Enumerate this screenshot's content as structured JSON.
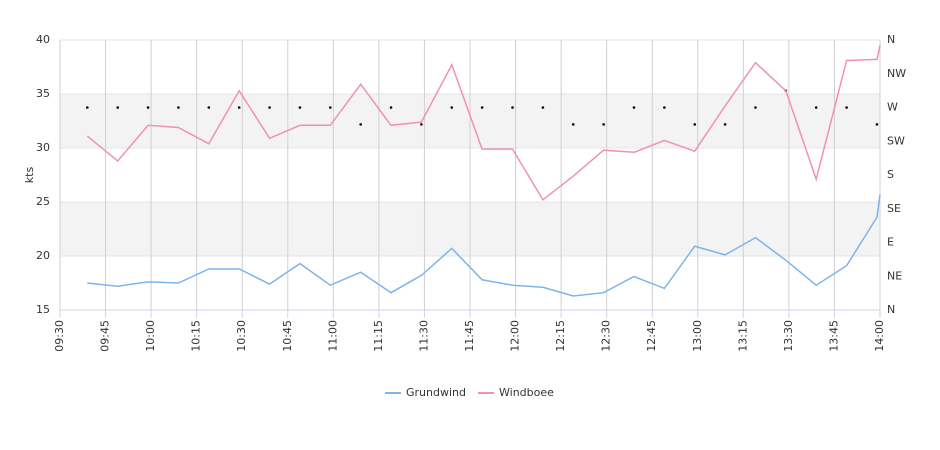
{
  "chart_data": {
    "type": "line",
    "y_label": "kts",
    "x": [
      "09:39",
      "09:49",
      "09:59",
      "10:09",
      "10:19",
      "10:29",
      "10:39",
      "10:49",
      "10:59",
      "11:09",
      "11:19",
      "11:29",
      "11:39",
      "11:49",
      "11:59",
      "12:09",
      "12:19",
      "12:29",
      "12:39",
      "12:49",
      "12:59",
      "13:09",
      "13:19",
      "13:29",
      "13:39",
      "13:49",
      "13:59",
      "14:00"
    ],
    "xlim": [
      "09:30",
      "14:00"
    ],
    "xticks": [
      "09:30",
      "09:45",
      "10:00",
      "10:15",
      "10:30",
      "10:45",
      "11:00",
      "11:15",
      "11:30",
      "11:45",
      "12:00",
      "12:15",
      "12:30",
      "12:45",
      "13:00",
      "13:15",
      "13:30",
      "13:45",
      "14:00"
    ],
    "ylim": [
      15,
      40
    ],
    "yticks": [
      15,
      20,
      25,
      30,
      35,
      40
    ],
    "y2lim": [
      0,
      360
    ],
    "y2ticks": [
      {
        "value": 0,
        "label": "N"
      },
      {
        "value": 45,
        "label": "NE"
      },
      {
        "value": 90,
        "label": "E"
      },
      {
        "value": 135,
        "label": "SE"
      },
      {
        "value": 180,
        "label": "S"
      },
      {
        "value": 225,
        "label": "SW"
      },
      {
        "value": 270,
        "label": "W"
      },
      {
        "value": 315,
        "label": "NW"
      },
      {
        "value": 360,
        "label": "N"
      }
    ],
    "bands": [
      {
        "from": 30,
        "to": 35
      },
      {
        "from": 20,
        "to": 25
      }
    ],
    "series": [
      {
        "name": "Grundwind",
        "color": "#7cb5ec",
        "values": [
          17.5,
          17.2,
          17.6,
          17.5,
          18.8,
          18.8,
          17.4,
          19.3,
          17.3,
          18.5,
          16.6,
          18.2,
          20.7,
          17.8,
          17.3,
          17.1,
          16.3,
          16.6,
          18.1,
          17.0,
          20.9,
          20.1,
          21.7,
          19.6,
          17.3,
          19.1,
          23.6,
          25.7
        ]
      },
      {
        "name": "Windboee",
        "color": "#f28fb8",
        "values": [
          31.1,
          28.8,
          32.1,
          31.9,
          30.4,
          35.3,
          30.9,
          32.1,
          32.1,
          35.9,
          32.1,
          32.4,
          37.7,
          29.9,
          29.9,
          25.2,
          27.4,
          29.8,
          29.6,
          30.7,
          29.7,
          33.9,
          37.9,
          35.3,
          27.1,
          38.1,
          38.2,
          39.5
        ]
      }
    ],
    "direction": {
      "axis": "y2",
      "color": "#000000",
      "values": [
        270,
        270,
        270,
        270,
        270,
        270,
        270,
        270,
        270,
        247.5,
        270,
        247.5,
        270,
        270,
        270,
        270,
        247.5,
        247.5,
        270,
        270,
        247.5,
        247.5,
        270,
        292.5,
        270,
        270,
        247.5,
        null
      ]
    }
  }
}
